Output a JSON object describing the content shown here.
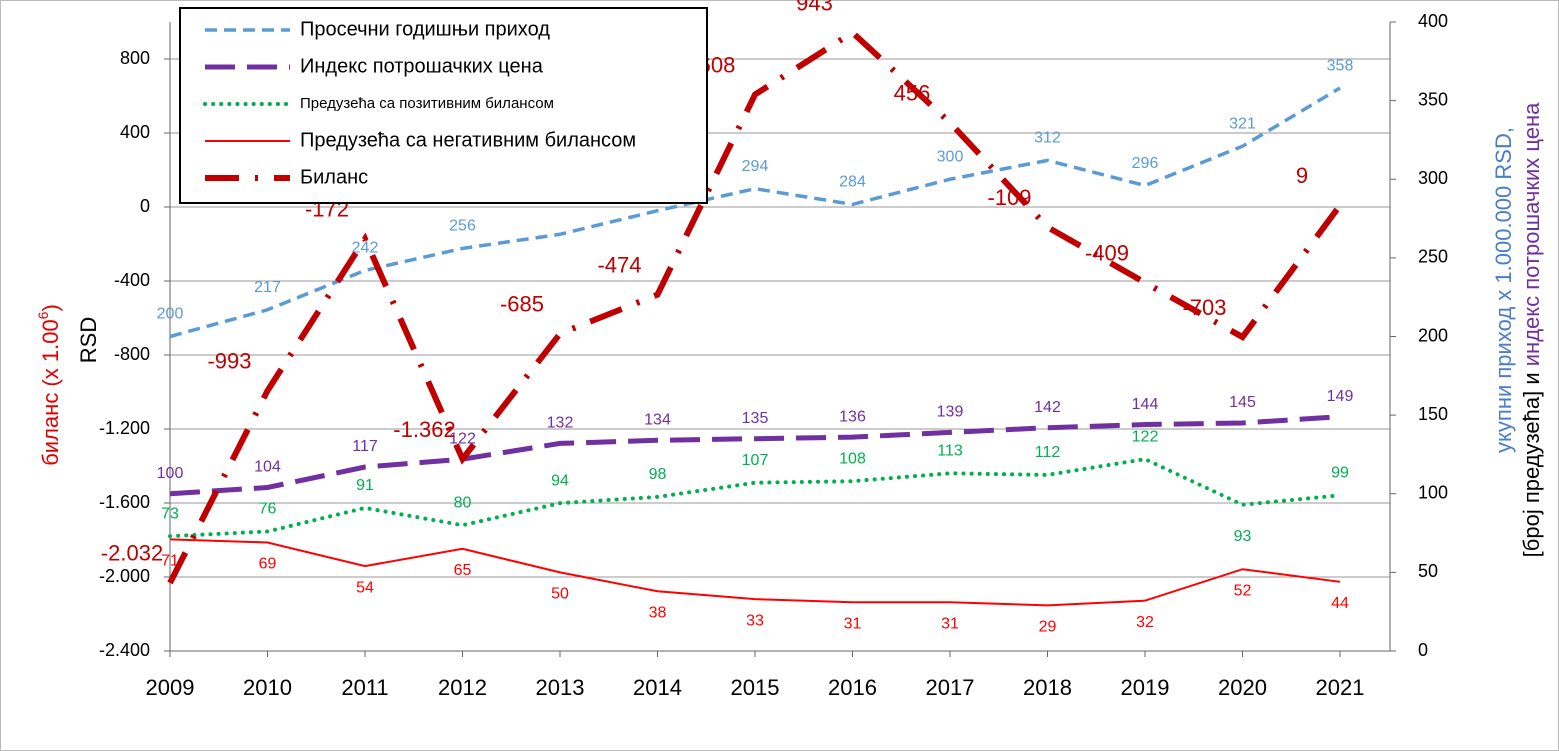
{
  "chart_data": {
    "type": "line",
    "categories": [
      "2009",
      "2010",
      "2011",
      "2012",
      "2013",
      "2014",
      "2015",
      "2016",
      "2017",
      "2018",
      "2019",
      "2020",
      "2021"
    ],
    "ylabel": {
      "text": "биланс (x 1.00",
      "sup": "6",
      "end": ")",
      "unit": "RSD"
    },
    "y2label": {
      "line1": "укупни приход x 1.000.000 RSD,",
      "line2a": "[број предузећа] и ",
      "line2b": "индекс потрошачких цена"
    },
    "ylim": [
      -2400,
      1000
    ],
    "yticks": [
      {
        "value": -2400,
        "label": "-2.400"
      },
      {
        "value": -2000,
        "label": "-2.000"
      },
      {
        "value": -1600,
        "label": "-1.600"
      },
      {
        "value": -1200,
        "label": "-1.200"
      },
      -800,
      -400,
      0,
      400,
      800
    ],
    "y2lim": [
      0,
      400
    ],
    "y2ticks": [
      0,
      50,
      100,
      150,
      200,
      250,
      300,
      350,
      400
    ],
    "grid": true,
    "legend": "upper left",
    "series": [
      {
        "name": "Просечни годишњи приход",
        "color": "#5b9bd5",
        "axis": "y2",
        "style": "dash",
        "values": [
          200,
          217,
          242,
          256,
          265,
          280,
          294,
          284,
          300,
          312,
          296,
          321,
          358
        ],
        "value_labels": [
          "200",
          "217",
          "242",
          "256",
          null,
          null,
          "294",
          "284",
          "300",
          "312",
          "296",
          "321",
          "358"
        ]
      },
      {
        "name": "Индекс потрошачких цена",
        "color": "#7030a0",
        "axis": "y2",
        "style": "longdash",
        "values": [
          100,
          104,
          117,
          122,
          132,
          134,
          135,
          136,
          139,
          142,
          144,
          145,
          149
        ]
      },
      {
        "name": "Предузећа са позитивним билансом",
        "color": "#00b050",
        "axis": "y2",
        "style": "dot",
        "values": [
          73,
          76,
          91,
          80,
          94,
          98,
          107,
          108,
          113,
          112,
          122,
          93,
          99
        ]
      },
      {
        "name": "Предузећа са негативним билансом",
        "color": "#ff0000",
        "axis": "y2",
        "style": "solid",
        "values": [
          71,
          69,
          54,
          65,
          50,
          38,
          33,
          31,
          31,
          29,
          32,
          52,
          44
        ]
      },
      {
        "name": "Биланс",
        "color": "#c00000",
        "axis": "y",
        "style": "dashdot",
        "values": [
          -2032,
          -993,
          -172,
          -1362,
          -685,
          -474,
          608,
          943,
          456,
          -109,
          -409,
          -703,
          9
        ],
        "value_labels": [
          "-2.032",
          "-993",
          "-172",
          "-1.362",
          "-685",
          "-474",
          "608",
          "943",
          "456",
          "-109",
          "-409",
          "-703",
          "9"
        ]
      }
    ]
  }
}
